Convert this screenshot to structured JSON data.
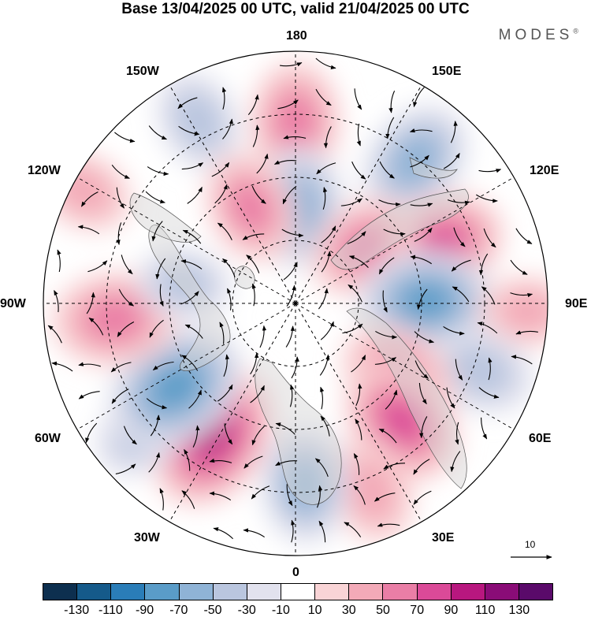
{
  "title": "Base 13/04/2025 00 UTC, valid 21/04/2025 00 UTC",
  "brand": "MODES",
  "brand_mark": "®",
  "longitude_labels": {
    "n180": "180",
    "n150e": "150E",
    "n120e": "120E",
    "n90e": "90E",
    "n60e": "60E",
    "n30e": "30E",
    "n0": "0",
    "n30w": "30W",
    "n60w": "60W",
    "n90w": "90W",
    "n120w": "120W",
    "n150w": "150W"
  },
  "reference_vector": {
    "label": "10",
    "magnitude": 10
  },
  "legend": {
    "ticks": [
      "-130",
      "-110",
      "-90",
      "-70",
      "-50",
      "-30",
      "-10",
      "10",
      "30",
      "50",
      "70",
      "90",
      "110",
      "130"
    ],
    "colors": [
      "#0d2f4f",
      "#155a8a",
      "#2a7db8",
      "#5a9cc8",
      "#8fb3d6",
      "#bac6df",
      "#e2e2ee",
      "#ffffff",
      "#f9d4d6",
      "#f3aab8",
      "#ea7ea6",
      "#db4a98",
      "#b8177f",
      "#8a0c77",
      "#5a0a6a"
    ]
  },
  "anomaly_centers": [
    {
      "lon": 180,
      "lat_r": 0.72,
      "value": 60
    },
    {
      "lon": -152,
      "lat_r": 0.82,
      "value": -40
    },
    {
      "lon": 178,
      "lat_r": 0.38,
      "value": -60
    },
    {
      "lon": -155,
      "lat_r": 0.42,
      "value": 50
    },
    {
      "lon": -118,
      "lat_r": 0.95,
      "value": 35
    },
    {
      "lon": 140,
      "lat_r": 0.74,
      "value": -60
    },
    {
      "lon": 112,
      "lat_r": 0.62,
      "value": 70
    },
    {
      "lon": 130,
      "lat_r": 0.35,
      "value": 50
    },
    {
      "lon": 91,
      "lat_r": 0.52,
      "value": -75
    },
    {
      "lon": 88,
      "lat_r": 0.92,
      "value": 30
    },
    {
      "lon": 70,
      "lat_r": 0.78,
      "value": -45
    },
    {
      "lon": 55,
      "lat_r": 0.5,
      "value": 60
    },
    {
      "lon": 42,
      "lat_r": 0.63,
      "value": 70
    },
    {
      "lon": 22,
      "lat_r": 0.8,
      "value": 45
    },
    {
      "lon": 3,
      "lat_r": 0.72,
      "value": -55
    },
    {
      "lon": -32,
      "lat_r": 0.62,
      "value": 90
    },
    {
      "lon": -50,
      "lat_r": 0.8,
      "value": -35
    },
    {
      "lon": -55,
      "lat_r": 0.58,
      "value": -85
    },
    {
      "lon": -85,
      "lat_r": 0.72,
      "value": 65
    },
    {
      "lon": -100,
      "lat_r": 0.45,
      "value": -30
    }
  ]
}
